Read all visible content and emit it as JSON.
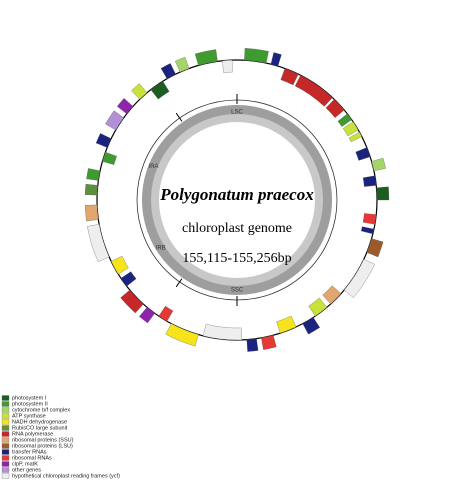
{
  "diagram": {
    "title": "Polygonatum praecox",
    "subtitle": "chloroplast genome",
    "size": "155,115-155,256bp",
    "regions": [
      "LSC",
      "IRB",
      "SSC",
      "IRA"
    ],
    "legend": [
      {
        "label": "photosystem I",
        "color": "#1b5e20"
      },
      {
        "label": "photosystem II",
        "color": "#3f9b2f"
      },
      {
        "label": "cytochrome b/f complex",
        "color": "#a5d46a"
      },
      {
        "label": "ATP synthase",
        "color": "#c9e13a"
      },
      {
        "label": "NADH dehydrogenase",
        "color": "#f6e31b"
      },
      {
        "label": "RubisCO large subunit",
        "color": "#5d8f3e"
      },
      {
        "label": "RNA polymerase",
        "color": "#c62828"
      },
      {
        "label": "ribosomal proteins (SSU)",
        "color": "#e0a66f"
      },
      {
        "label": "ribosomal proteins (LSU)",
        "color": "#9c5a2a"
      },
      {
        "label": "transfer RNAs",
        "color": "#1a237e"
      },
      {
        "label": "ribosomal RNAs",
        "color": "#e53935"
      },
      {
        "label": "clpP, matK",
        "color": "#8e24aa"
      },
      {
        "label": "other genes",
        "color": "#b38fd6"
      },
      {
        "label": "hypothetical chloroplast reading frames (ycf)",
        "color": "#eeeeee"
      }
    ]
  }
}
